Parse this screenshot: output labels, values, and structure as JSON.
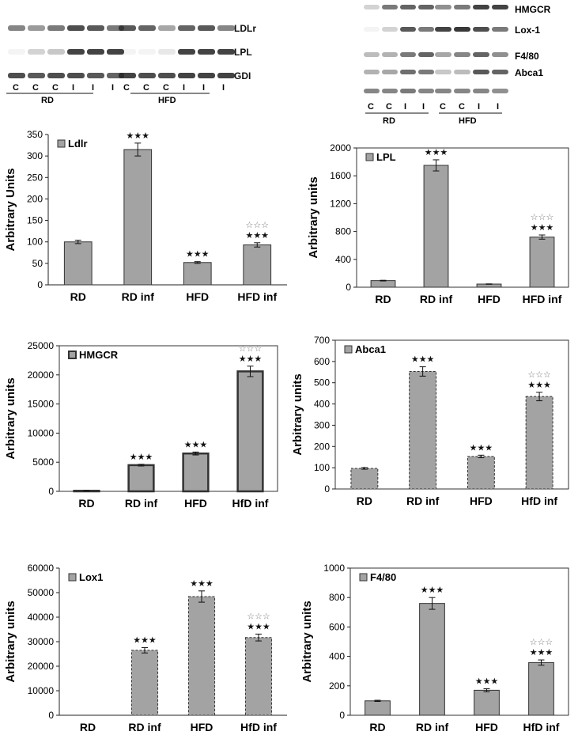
{
  "blots": {
    "left": {
      "proteins": [
        "LDLr",
        "LPL",
        "GDI"
      ],
      "lanes": [
        "C",
        "C",
        "C",
        "I",
        "I",
        "I"
      ],
      "groups": [
        "RD",
        "HFD"
      ]
    },
    "right": {
      "proteins": [
        "HMGCR",
        "Lox-1",
        "F4/80",
        "Abca1"
      ],
      "lanes": [
        "C",
        "C",
        "I",
        "I"
      ],
      "groups": [
        "RD",
        "HFD"
      ]
    }
  },
  "significance": {
    "vs_control": "★★★",
    "vs_hfd": "☆☆☆"
  },
  "chart_data": [
    {
      "type": "bar",
      "legend": "Ldlr",
      "ylabel": "Arbitrary Units",
      "categories": [
        "RD",
        "RD inf",
        "HFD",
        "HFD inf"
      ],
      "values": [
        100,
        315,
        52,
        93
      ],
      "errors": [
        4,
        15,
        2,
        5
      ],
      "ylim": [
        0,
        350
      ],
      "yticks": [
        0,
        50,
        100,
        150,
        200,
        250,
        300,
        350
      ],
      "sig_black": [
        false,
        true,
        true,
        true
      ],
      "sig_open": [
        false,
        false,
        false,
        true
      ],
      "frame": false,
      "bar_style": "plain"
    },
    {
      "type": "bar",
      "legend": "LPL",
      "ylabel": "Arbitrary units",
      "categories": [
        "RD",
        "RD inf",
        "HFD",
        "HFD inf"
      ],
      "values": [
        95,
        1750,
        45,
        720
      ],
      "errors": [
        5,
        80,
        3,
        30
      ],
      "ylim": [
        0,
        2000
      ],
      "yticks": [
        0,
        400,
        800,
        1200,
        1600,
        2000
      ],
      "sig_black": [
        false,
        true,
        false,
        true
      ],
      "sig_open": [
        false,
        false,
        false,
        true
      ],
      "frame": true,
      "bar_style": "plain"
    },
    {
      "type": "bar",
      "legend": "HMGCR",
      "ylabel": "Arbitrary units",
      "categories": [
        "RD",
        "RD inf",
        "HFD",
        "HfD inf"
      ],
      "values": [
        100,
        4500,
        6500,
        20600
      ],
      "errors": [
        20,
        150,
        250,
        900
      ],
      "ylim": [
        0,
        25000
      ],
      "yticks": [
        0,
        5000,
        10000,
        15000,
        20000,
        25000
      ],
      "sig_black": [
        false,
        true,
        true,
        true
      ],
      "sig_open": [
        false,
        false,
        false,
        true
      ],
      "frame": true,
      "bar_style": "thick"
    },
    {
      "type": "bar",
      "legend": "Abca1",
      "ylabel": "Arbitrary units",
      "categories": [
        "RD",
        "RD inf",
        "HFD",
        "HfD inf"
      ],
      "values": [
        97,
        553,
        153,
        435
      ],
      "errors": [
        4,
        22,
        6,
        20
      ],
      "ylim": [
        0,
        700
      ],
      "yticks": [
        0,
        100,
        200,
        300,
        400,
        500,
        600,
        700
      ],
      "sig_black": [
        false,
        true,
        true,
        true
      ],
      "sig_open": [
        false,
        false,
        false,
        true
      ],
      "frame": true,
      "bar_style": "dashed"
    },
    {
      "type": "bar",
      "legend": "Lox1",
      "ylabel": "Arbitrary units",
      "categories": [
        "RD",
        "RD inf",
        "HFD",
        "HfD inf"
      ],
      "values": [
        0,
        26500,
        48400,
        31700
      ],
      "errors": [
        0,
        1100,
        2300,
        1400
      ],
      "ylim": [
        0,
        60000
      ],
      "yticks": [
        0,
        10000,
        20000,
        30000,
        40000,
        50000,
        60000
      ],
      "sig_black": [
        false,
        true,
        true,
        true
      ],
      "sig_open": [
        false,
        false,
        false,
        true
      ],
      "frame": false,
      "bar_style": "dashed"
    },
    {
      "type": "bar",
      "legend": "F4/80",
      "ylabel": "Arbitrary units",
      "categories": [
        "RD",
        "RD inf",
        "HFD",
        "HfD inf"
      ],
      "values": [
        98,
        760,
        170,
        358
      ],
      "errors": [
        4,
        40,
        10,
        18
      ],
      "ylim": [
        0,
        1000
      ],
      "yticks": [
        0,
        200,
        400,
        600,
        800,
        1000
      ],
      "sig_black": [
        false,
        true,
        true,
        true
      ],
      "sig_open": [
        false,
        false,
        false,
        true
      ],
      "frame": true,
      "bar_style": "plain"
    }
  ],
  "colors": {
    "bar_fill": "#a3a3a3",
    "axis": "#222222",
    "frame": "#333333"
  }
}
